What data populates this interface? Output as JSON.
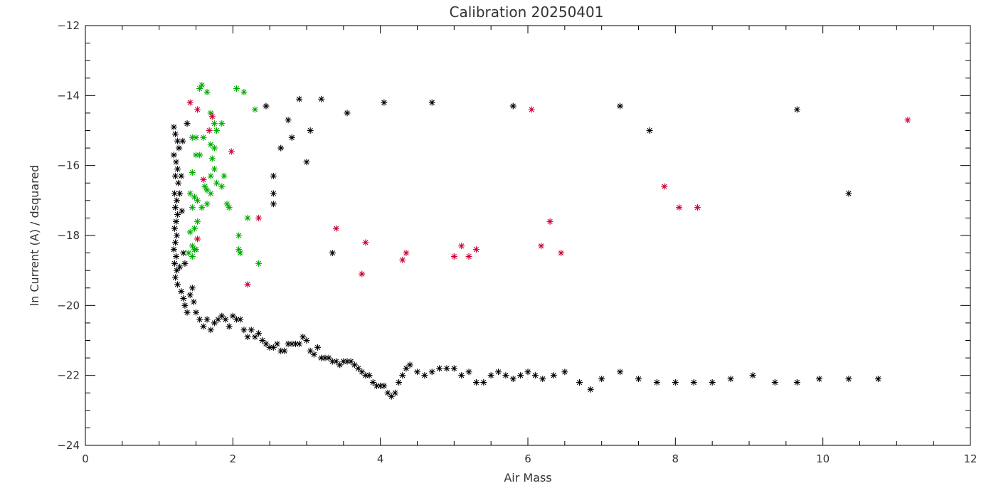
{
  "chart_data": {
    "type": "scatter",
    "title": "Calibration 20250401",
    "xlabel": "Air Mass",
    "ylabel": "ln Current (A) / dsquared",
    "xlim": [
      0,
      12
    ],
    "ylim": [
      -24,
      -12
    ],
    "xticks": [
      "0",
      "2",
      "4",
      "6",
      "8",
      "10",
      "12"
    ],
    "yticks": [
      "-24",
      "-22",
      "-20",
      "-18",
      "-16",
      "-14",
      "-12"
    ],
    "grid": false,
    "legend": "none",
    "marker": "asterisk",
    "series": [
      {
        "color": "#000000",
        "points": [
          [
            1.2,
            -14.9
          ],
          [
            1.22,
            -15.1
          ],
          [
            1.25,
            -15.3
          ],
          [
            1.27,
            -15.5
          ],
          [
            1.2,
            -15.7
          ],
          [
            1.23,
            -15.9
          ],
          [
            1.25,
            -16.1
          ],
          [
            1.22,
            -16.3
          ],
          [
            1.26,
            -16.5
          ],
          [
            1.21,
            -16.8
          ],
          [
            1.24,
            -17.0
          ],
          [
            1.22,
            -17.2
          ],
          [
            1.25,
            -17.4
          ],
          [
            1.23,
            -17.6
          ],
          [
            1.21,
            -17.8
          ],
          [
            1.24,
            -18.0
          ],
          [
            1.22,
            -18.2
          ],
          [
            1.2,
            -18.4
          ],
          [
            1.23,
            -18.6
          ],
          [
            1.21,
            -18.8
          ],
          [
            1.24,
            -19.0
          ],
          [
            1.22,
            -19.2
          ],
          [
            1.25,
            -19.4
          ],
          [
            1.3,
            -16.3
          ],
          [
            1.28,
            -16.8
          ],
          [
            1.31,
            -17.3
          ],
          [
            1.33,
            -18.5
          ],
          [
            1.35,
            -18.8
          ],
          [
            1.28,
            -18.9
          ],
          [
            1.3,
            -19.6
          ],
          [
            1.33,
            -19.8
          ],
          [
            1.35,
            -20.0
          ],
          [
            1.38,
            -20.2
          ],
          [
            1.42,
            -19.7
          ],
          [
            1.45,
            -19.5
          ],
          [
            1.47,
            -19.9
          ],
          [
            1.5,
            -20.2
          ],
          [
            1.55,
            -20.4
          ],
          [
            1.6,
            -20.6
          ],
          [
            1.65,
            -20.4
          ],
          [
            1.7,
            -20.7
          ],
          [
            1.75,
            -20.5
          ],
          [
            1.8,
            -20.4
          ],
          [
            1.85,
            -20.3
          ],
          [
            1.9,
            -20.4
          ],
          [
            1.95,
            -20.6
          ],
          [
            2.0,
            -20.3
          ],
          [
            2.05,
            -20.4
          ],
          [
            2.1,
            -20.4
          ],
          [
            2.15,
            -20.7
          ],
          [
            2.2,
            -20.9
          ],
          [
            2.25,
            -20.7
          ],
          [
            2.3,
            -20.9
          ],
          [
            2.35,
            -20.8
          ],
          [
            2.4,
            -21.0
          ],
          [
            2.45,
            -21.1
          ],
          [
            2.5,
            -21.2
          ],
          [
            2.55,
            -21.2
          ],
          [
            2.6,
            -21.1
          ],
          [
            2.65,
            -21.3
          ],
          [
            2.7,
            -21.3
          ],
          [
            2.75,
            -21.1
          ],
          [
            2.8,
            -21.1
          ],
          [
            2.85,
            -21.1
          ],
          [
            2.9,
            -21.1
          ],
          [
            2.95,
            -20.9
          ],
          [
            3.0,
            -21.0
          ],
          [
            3.05,
            -21.3
          ],
          [
            3.1,
            -21.4
          ],
          [
            3.15,
            -21.2
          ],
          [
            3.2,
            -21.5
          ],
          [
            3.25,
            -21.5
          ],
          [
            3.3,
            -21.5
          ],
          [
            3.35,
            -21.6
          ],
          [
            3.4,
            -21.6
          ],
          [
            3.45,
            -21.7
          ],
          [
            3.5,
            -21.6
          ],
          [
            3.55,
            -21.6
          ],
          [
            3.6,
            -21.6
          ],
          [
            3.65,
            -21.7
          ],
          [
            3.7,
            -21.8
          ],
          [
            3.75,
            -21.9
          ],
          [
            3.8,
            -22.0
          ],
          [
            3.85,
            -22.0
          ],
          [
            3.9,
            -22.2
          ],
          [
            3.95,
            -22.3
          ],
          [
            4.0,
            -22.3
          ],
          [
            4.05,
            -22.3
          ],
          [
            4.1,
            -22.5
          ],
          [
            4.15,
            -22.6
          ],
          [
            4.2,
            -22.5
          ],
          [
            4.25,
            -22.2
          ],
          [
            4.3,
            -22.0
          ],
          [
            4.35,
            -21.8
          ],
          [
            4.4,
            -21.7
          ],
          [
            4.5,
            -21.9
          ],
          [
            4.6,
            -22.0
          ],
          [
            4.7,
            -21.9
          ],
          [
            4.8,
            -21.8
          ],
          [
            4.9,
            -21.8
          ],
          [
            5.0,
            -21.8
          ],
          [
            5.1,
            -22.0
          ],
          [
            5.2,
            -21.9
          ],
          [
            5.3,
            -22.2
          ],
          [
            5.4,
            -22.2
          ],
          [
            5.5,
            -22.0
          ],
          [
            5.6,
            -21.9
          ],
          [
            5.7,
            -22.0
          ],
          [
            5.8,
            -22.1
          ],
          [
            5.9,
            -22.0
          ],
          [
            6.0,
            -21.9
          ],
          [
            6.1,
            -22.0
          ],
          [
            6.2,
            -22.1
          ],
          [
            6.35,
            -22.0
          ],
          [
            6.5,
            -21.9
          ],
          [
            6.7,
            -22.2
          ],
          [
            6.85,
            -22.4
          ],
          [
            7.0,
            -22.1
          ],
          [
            7.25,
            -21.9
          ],
          [
            7.5,
            -22.1
          ],
          [
            7.75,
            -22.2
          ],
          [
            8.0,
            -22.2
          ],
          [
            8.25,
            -22.2
          ],
          [
            8.5,
            -22.2
          ],
          [
            8.75,
            -22.1
          ],
          [
            9.05,
            -22.0
          ],
          [
            9.35,
            -22.2
          ],
          [
            9.65,
            -22.2
          ],
          [
            9.95,
            -22.1
          ],
          [
            10.35,
            -22.1
          ],
          [
            10.75,
            -22.1
          ],
          [
            1.38,
            -14.8
          ],
          [
            1.32,
            -15.3
          ],
          [
            2.45,
            -14.3
          ],
          [
            2.9,
            -14.1
          ],
          [
            3.2,
            -14.1
          ],
          [
            3.55,
            -14.5
          ],
          [
            4.05,
            -14.2
          ],
          [
            4.7,
            -14.2
          ],
          [
            5.8,
            -14.3
          ],
          [
            7.25,
            -14.3
          ],
          [
            7.65,
            -15.0
          ],
          [
            9.65,
            -14.4
          ],
          [
            10.35,
            -16.8
          ],
          [
            2.75,
            -14.7
          ],
          [
            2.8,
            -15.2
          ],
          [
            3.05,
            -15.0
          ],
          [
            2.65,
            -15.5
          ],
          [
            3.0,
            -15.9
          ],
          [
            2.55,
            -16.3
          ],
          [
            2.55,
            -16.8
          ],
          [
            2.55,
            -17.1
          ],
          [
            3.35,
            -18.5
          ]
        ]
      },
      {
        "color": "#00aa00",
        "points": [
          [
            1.58,
            -13.7
          ],
          [
            1.55,
            -13.8
          ],
          [
            1.65,
            -13.9
          ],
          [
            2.05,
            -13.8
          ],
          [
            2.15,
            -13.9
          ],
          [
            2.3,
            -14.4
          ],
          [
            1.7,
            -14.5
          ],
          [
            1.75,
            -14.8
          ],
          [
            1.85,
            -14.8
          ],
          [
            1.78,
            -15.0
          ],
          [
            1.6,
            -15.2
          ],
          [
            1.5,
            -15.2
          ],
          [
            1.45,
            -15.2
          ],
          [
            1.7,
            -15.4
          ],
          [
            1.75,
            -15.5
          ],
          [
            1.55,
            -15.7
          ],
          [
            1.5,
            -15.7
          ],
          [
            1.72,
            -15.8
          ],
          [
            1.75,
            -16.1
          ],
          [
            1.45,
            -16.2
          ],
          [
            1.7,
            -16.3
          ],
          [
            1.88,
            -16.3
          ],
          [
            1.78,
            -16.5
          ],
          [
            1.62,
            -16.6
          ],
          [
            1.65,
            -16.7
          ],
          [
            1.7,
            -16.8
          ],
          [
            1.85,
            -16.6
          ],
          [
            1.42,
            -16.8
          ],
          [
            1.48,
            -16.9
          ],
          [
            1.52,
            -17.0
          ],
          [
            1.65,
            -17.1
          ],
          [
            1.58,
            -17.2
          ],
          [
            1.45,
            -17.2
          ],
          [
            1.92,
            -17.1
          ],
          [
            1.95,
            -17.2
          ],
          [
            2.2,
            -17.5
          ],
          [
            1.52,
            -17.6
          ],
          [
            1.48,
            -17.8
          ],
          [
            1.42,
            -17.9
          ],
          [
            2.08,
            -18.0
          ],
          [
            1.45,
            -18.3
          ],
          [
            1.5,
            -18.4
          ],
          [
            1.4,
            -18.5
          ],
          [
            1.45,
            -18.6
          ],
          [
            1.48,
            -18.4
          ],
          [
            2.08,
            -18.4
          ],
          [
            2.1,
            -18.5
          ],
          [
            2.35,
            -18.8
          ]
        ]
      },
      {
        "color": "#cc0033",
        "points": [
          [
            1.42,
            -14.2
          ],
          [
            1.52,
            -14.4
          ],
          [
            1.72,
            -14.6
          ],
          [
            1.68,
            -15.0
          ],
          [
            1.98,
            -15.6
          ],
          [
            1.6,
            -16.4
          ],
          [
            1.52,
            -18.1
          ],
          [
            2.35,
            -17.5
          ],
          [
            2.2,
            -19.4
          ],
          [
            3.4,
            -17.8
          ],
          [
            3.75,
            -19.1
          ],
          [
            3.8,
            -18.2
          ],
          [
            4.3,
            -18.7
          ],
          [
            4.35,
            -18.5
          ],
          [
            5.0,
            -18.6
          ],
          [
            5.1,
            -18.3
          ],
          [
            5.2,
            -18.6
          ],
          [
            5.3,
            -18.4
          ],
          [
            6.05,
            -14.4
          ],
          [
            6.18,
            -18.3
          ],
          [
            6.3,
            -17.6
          ],
          [
            6.45,
            -18.5
          ],
          [
            7.85,
            -16.6
          ],
          [
            8.05,
            -17.2
          ],
          [
            8.3,
            -17.2
          ],
          [
            11.15,
            -14.7
          ]
        ]
      }
    ]
  }
}
